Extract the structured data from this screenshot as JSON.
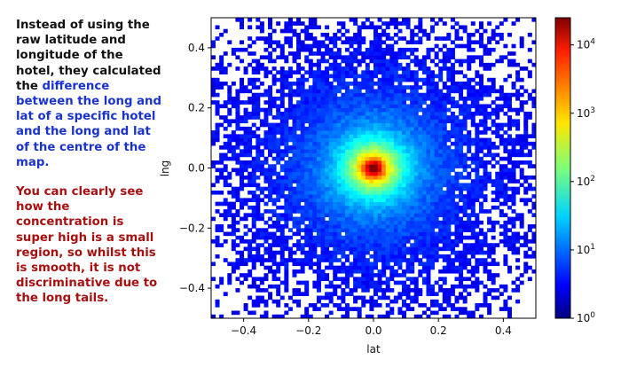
{
  "notes": {
    "intro": "Instead of using the raw latitude and longitude of the hotel, they calculated the",
    "highlight": "difference between the long and lat of a specific hotel and the long and lat of the centre of the map.",
    "conclusion": "You can clearly see how the concentration is super high is a small region, so whilst this is smooth, it is not discriminative due to the long tails."
  },
  "colors": {
    "intro_text": "#111111",
    "highlight_text": "#1a33cc",
    "conclusion_text": "#a81010"
  },
  "chart_data": {
    "type": "heatmap",
    "xlabel": "lat",
    "ylabel": "lng",
    "xlim": [
      -0.5,
      0.5
    ],
    "ylim": [
      -0.5,
      0.5
    ],
    "x_ticks": [
      -0.4,
      -0.2,
      0.0,
      0.2,
      0.4
    ],
    "x_tick_labels": [
      "−0.4",
      "−0.2",
      "0.0",
      "0.2",
      "0.4"
    ],
    "y_ticks": [
      -0.4,
      -0.2,
      0.0,
      0.2,
      0.4
    ],
    "y_tick_labels": [
      "−0.4",
      "−0.2",
      "0.0",
      "0.2",
      "0.4"
    ],
    "colorscale": "jet",
    "color_scale_type": "log",
    "colorbar_range": [
      1,
      25000
    ],
    "colorbar_ticks": [
      1,
      10,
      100,
      1000,
      10000
    ],
    "colorbar_tick_labels": [
      "10^0",
      "10^1",
      "10^2",
      "10^3",
      "10^4"
    ],
    "center": [
      0.0,
      0.0
    ],
    "peak_count": 25000,
    "grid": false,
    "legend": "none"
  }
}
